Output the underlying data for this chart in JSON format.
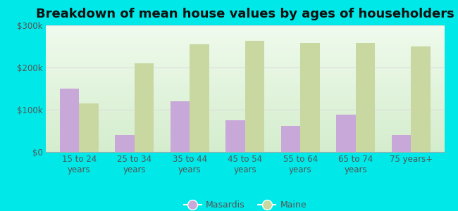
{
  "title": "Breakdown of mean house values by ages of householders",
  "categories": [
    "15 to 24\nyears",
    "25 to 34\nyears",
    "35 to 44\nyears",
    "45 to 54\nyears",
    "55 to 64\nyears",
    "65 to 74\nyears",
    "75 years+"
  ],
  "masardis": [
    150000,
    40000,
    120000,
    75000,
    62000,
    88000,
    40000
  ],
  "maine": [
    115000,
    210000,
    255000,
    263000,
    258000,
    258000,
    250000
  ],
  "masardis_color": "#c8a8d8",
  "maine_color": "#c8d8a0",
  "background_color": "#00e8e8",
  "plot_bg": "#e8f5e8",
  "ylim": [
    0,
    300000
  ],
  "yticks": [
    0,
    100000,
    200000,
    300000
  ],
  "ytick_labels": [
    "$0",
    "$100k",
    "$200k",
    "$300k"
  ],
  "bar_width": 0.35,
  "title_fontsize": 13,
  "legend_labels": [
    "Masardis",
    "Maine"
  ],
  "grid_color": "#dddddd",
  "tick_color": "#555555"
}
